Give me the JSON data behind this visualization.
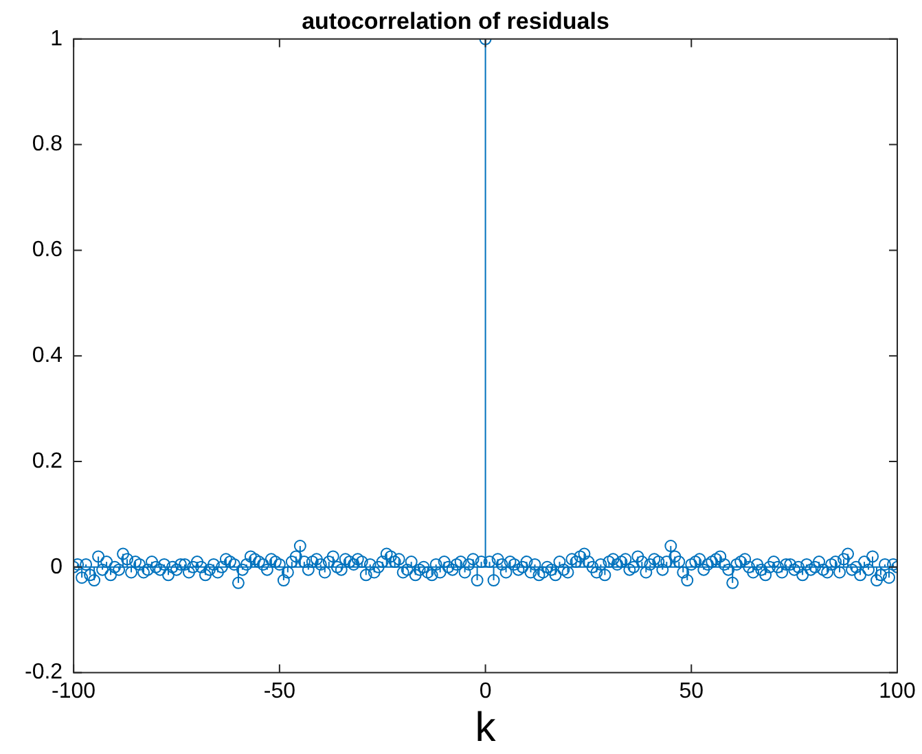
{
  "chart_data": {
    "type": "lollipop",
    "title": "autocorrelation of residuals",
    "xlabel": "k",
    "x": [
      -100,
      -99,
      -98,
      -97,
      -96,
      -95,
      -94,
      -93,
      -92,
      -91,
      -90,
      -89,
      -88,
      -87,
      -86,
      -85,
      -84,
      -83,
      -82,
      -81,
      -80,
      -79,
      -78,
      -77,
      -76,
      -75,
      -74,
      -73,
      -72,
      -71,
      -70,
      -69,
      -68,
      -67,
      -66,
      -65,
      -64,
      -63,
      -62,
      -61,
      -60,
      -59,
      -58,
      -57,
      -56,
      -55,
      -54,
      -53,
      -52,
      -51,
      -50,
      -49,
      -48,
      -47,
      -46,
      -45,
      -44,
      -43,
      -42,
      -41,
      -40,
      -39,
      -38,
      -37,
      -36,
      -35,
      -34,
      -33,
      -32,
      -31,
      -30,
      -29,
      -28,
      -27,
      -26,
      -25,
      -24,
      -23,
      -22,
      -21,
      -20,
      -19,
      -18,
      -17,
      -16,
      -15,
      -14,
      -13,
      -12,
      -11,
      -10,
      -9,
      -8,
      -7,
      -6,
      -5,
      -4,
      -3,
      -2,
      -1,
      0,
      1,
      2,
      3,
      4,
      5,
      6,
      7,
      8,
      9,
      10,
      11,
      12,
      13,
      14,
      15,
      16,
      17,
      18,
      19,
      20,
      21,
      22,
      23,
      24,
      25,
      26,
      27,
      28,
      29,
      30,
      31,
      32,
      33,
      34,
      35,
      36,
      37,
      38,
      39,
      40,
      41,
      42,
      43,
      44,
      45,
      46,
      47,
      48,
      49,
      50,
      51,
      52,
      53,
      54,
      55,
      56,
      57,
      58,
      59,
      60,
      61,
      62,
      63,
      64,
      65,
      66,
      67,
      68,
      69,
      70,
      71,
      72,
      73,
      74,
      75,
      76,
      77,
      78,
      79,
      80,
      81,
      82,
      83,
      84,
      85,
      86,
      87,
      88,
      89,
      90,
      91,
      92,
      93,
      94,
      95,
      96,
      97,
      98,
      99,
      100
    ],
    "series": [
      {
        "color": "#0072bd",
        "values": [
          0.0,
          0.005,
          -0.02,
          0.005,
          -0.015,
          -0.025,
          0.02,
          -0.005,
          0.01,
          -0.015,
          0.0,
          -0.005,
          0.025,
          0.015,
          -0.01,
          0.01,
          0.005,
          -0.01,
          -0.005,
          0.01,
          0.0,
          -0.005,
          0.005,
          -0.015,
          0.0,
          -0.005,
          0.005,
          0.005,
          -0.01,
          0.0,
          0.01,
          0.0,
          -0.015,
          -0.005,
          0.005,
          -0.01,
          0.0,
          0.015,
          0.01,
          0.005,
          -0.03,
          -0.005,
          0.005,
          0.02,
          0.015,
          0.01,
          0.005,
          -0.005,
          0.015,
          0.01,
          0.005,
          -0.025,
          -0.01,
          0.01,
          0.02,
          0.04,
          0.01,
          -0.005,
          0.01,
          0.015,
          0.005,
          -0.01,
          0.01,
          0.02,
          0.0,
          -0.005,
          0.015,
          0.01,
          0.005,
          0.015,
          0.01,
          -0.015,
          0.005,
          -0.01,
          0.0,
          0.01,
          0.025,
          0.02,
          0.01,
          0.015,
          -0.01,
          -0.005,
          0.01,
          -0.015,
          -0.005,
          0.0,
          -0.01,
          -0.015,
          0.005,
          -0.01,
          0.01,
          0.0,
          -0.005,
          0.005,
          0.01,
          -0.01,
          0.005,
          0.015,
          -0.025,
          0.01,
          1,
          0.01,
          -0.025,
          0.015,
          0.005,
          -0.01,
          0.01,
          0.005,
          -0.005,
          0.0,
          0.01,
          -0.01,
          0.005,
          -0.015,
          -0.01,
          0.0,
          -0.005,
          -0.015,
          0.01,
          -0.005,
          -0.01,
          0.015,
          0.01,
          0.02,
          0.025,
          0.01,
          0.0,
          -0.01,
          0.005,
          -0.015,
          0.01,
          0.015,
          0.005,
          0.01,
          0.015,
          -0.005,
          0.0,
          0.02,
          0.01,
          -0.01,
          0.005,
          0.015,
          0.01,
          -0.005,
          0.01,
          0.04,
          0.02,
          0.01,
          -0.01,
          -0.025,
          0.005,
          0.01,
          0.015,
          -0.005,
          0.005,
          0.01,
          0.015,
          0.02,
          0.005,
          -0.005,
          -0.03,
          0.005,
          0.01,
          0.015,
          0.0,
          -0.01,
          0.005,
          -0.005,
          -0.015,
          0.0,
          0.01,
          0.0,
          -0.01,
          0.005,
          0.005,
          -0.005,
          0.0,
          -0.015,
          0.005,
          -0.005,
          0.0,
          0.01,
          -0.005,
          -0.01,
          0.005,
          0.01,
          -0.01,
          0.015,
          0.025,
          -0.005,
          0.0,
          -0.015,
          0.01,
          -0.005,
          0.02,
          -0.025,
          -0.015,
          0.005,
          -0.02,
          0.005,
          0.0
        ]
      }
    ],
    "ref_lines": [
      {
        "axis": "y",
        "value": 0,
        "color": "#0072bd"
      }
    ],
    "marker": "circle",
    "xlim": [
      -100,
      100
    ],
    "xticks": [
      -100,
      -50,
      0,
      50,
      100
    ],
    "ylim": [
      -0.2,
      1
    ],
    "yticks": [
      -0.2,
      0,
      0.2,
      0.4,
      0.6,
      0.8,
      1
    ]
  }
}
